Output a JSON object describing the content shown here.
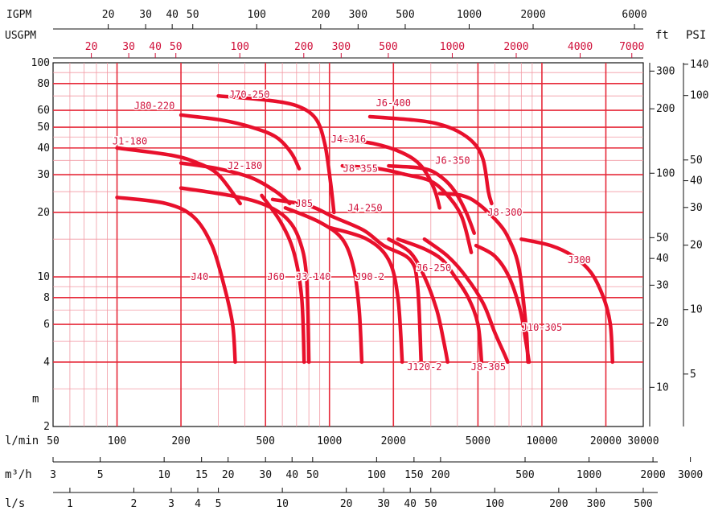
{
  "chart_data": {
    "type": "line",
    "colors": {
      "series": "#e8102c",
      "grid": "#e62a3a",
      "minor_grid": "#f29aa4",
      "axis": "#111111",
      "red_text": "#d0103a"
    },
    "axes": {
      "lmin": {
        "label": "l/min",
        "range": [
          50,
          30000
        ],
        "scale": "log",
        "ticks": [
          [
            50,
            "50"
          ],
          [
            100,
            "100"
          ],
          [
            200,
            "200"
          ],
          [
            500,
            "500"
          ],
          [
            1000,
            "1000"
          ],
          [
            2000,
            "2000"
          ],
          [
            5000,
            "5000"
          ],
          [
            10000,
            "10000"
          ],
          [
            20000,
            "20000"
          ],
          [
            30000,
            "30000"
          ]
        ]
      },
      "m": {
        "label": "m",
        "range": [
          2,
          100
        ],
        "scale": "log",
        "ticks": [
          [
            2,
            "2"
          ],
          [
            4,
            "4"
          ],
          [
            6,
            "6"
          ],
          [
            8,
            "8"
          ],
          [
            10,
            "10"
          ],
          [
            20,
            "20"
          ],
          [
            30,
            "30"
          ],
          [
            40,
            "40"
          ],
          [
            50,
            "50"
          ],
          [
            60,
            "60"
          ],
          [
            80,
            "80"
          ],
          [
            100,
            "100"
          ]
        ]
      },
      "igpm": {
        "label": "IGPM",
        "ticks": [
          [
            20,
            "20"
          ],
          [
            30,
            "30"
          ],
          [
            40,
            "40"
          ],
          [
            50,
            "50"
          ],
          [
            100,
            "100"
          ],
          [
            200,
            "200"
          ],
          [
            300,
            "300"
          ],
          [
            500,
            "500"
          ],
          [
            1000,
            "1000"
          ],
          [
            2000,
            "2000"
          ],
          [
            6000,
            "6000"
          ]
        ]
      },
      "usgpm": {
        "label": "USGPM",
        "ticks": [
          [
            20,
            "20"
          ],
          [
            30,
            "30"
          ],
          [
            40,
            "40"
          ],
          [
            50,
            "50"
          ],
          [
            100,
            "100"
          ],
          [
            200,
            "200"
          ],
          [
            300,
            "300"
          ],
          [
            500,
            "500"
          ],
          [
            1000,
            "1000"
          ],
          [
            2000,
            "2000"
          ],
          [
            4000,
            "4000"
          ],
          [
            7000,
            "7000"
          ]
        ]
      },
      "ft": {
        "label": "ft",
        "ticks": [
          [
            300,
            "300"
          ],
          [
            200,
            "200"
          ],
          [
            100,
            "100"
          ],
          [
            50,
            "50"
          ],
          [
            40,
            "40"
          ],
          [
            30,
            "30"
          ],
          [
            20,
            "20"
          ],
          [
            10,
            "10"
          ]
        ]
      },
      "psi": {
        "label": "PSI",
        "ticks": [
          [
            140,
            "140"
          ],
          [
            100,
            "100"
          ],
          [
            50,
            "50"
          ],
          [
            40,
            "40"
          ],
          [
            30,
            "30"
          ],
          [
            20,
            "20"
          ],
          [
            10,
            "10"
          ],
          [
            5,
            "5"
          ]
        ]
      },
      "m3h": {
        "label": "m³/h",
        "ticks": [
          [
            3,
            "3"
          ],
          [
            5,
            "5"
          ],
          [
            10,
            "10"
          ],
          [
            15,
            "15"
          ],
          [
            20,
            "20"
          ],
          [
            30,
            "30"
          ],
          [
            40,
            "40"
          ],
          [
            50,
            "50"
          ],
          [
            100,
            "100"
          ],
          [
            150,
            "150"
          ],
          [
            200,
            "200"
          ],
          [
            500,
            "500"
          ],
          [
            1000,
            "1000"
          ],
          [
            2000,
            "2000"
          ],
          [
            3000,
            "3000"
          ]
        ]
      },
      "ls": {
        "label": "l/s",
        "ticks": [
          [
            1,
            "1"
          ],
          [
            2,
            "2"
          ],
          [
            3,
            "3"
          ],
          [
            4,
            "4"
          ],
          [
            5,
            "5"
          ],
          [
            10,
            "10"
          ],
          [
            20,
            "20"
          ],
          [
            30,
            "30"
          ],
          [
            40,
            "40"
          ],
          [
            50,
            "50"
          ],
          [
            100,
            "100"
          ],
          [
            200,
            "200"
          ],
          [
            300,
            "300"
          ],
          [
            500,
            "500"
          ]
        ]
      }
    },
    "series": [
      {
        "name": "J1-180",
        "label": {
          "text": "J1-180",
          "at": [
            115,
            43
          ]
        },
        "points": [
          [
            100,
            40
          ],
          [
            180,
            37
          ],
          [
            240,
            34
          ],
          [
            300,
            30
          ],
          [
            380,
            22
          ]
        ]
      },
      {
        "name": "J80-220",
        "label": {
          "text": "J80-220",
          "at": [
            150,
            63
          ]
        },
        "points": [
          [
            200,
            57
          ],
          [
            310,
            54
          ],
          [
            430,
            50
          ],
          [
            560,
            45
          ],
          [
            660,
            38
          ],
          [
            720,
            32
          ]
        ]
      },
      {
        "name": "J70-250",
        "label": {
          "text": "J70-250",
          "at": [
            420,
            71
          ]
        },
        "points": [
          [
            300,
            70
          ],
          [
            500,
            67
          ],
          [
            700,
            63
          ],
          [
            860,
            55
          ],
          [
            950,
            42
          ],
          [
            1010,
            28
          ],
          [
            1050,
            20
          ]
        ]
      },
      {
        "name": "J6-400",
        "label": {
          "text": "J6-400",
          "at": [
            2000,
            65
          ]
        },
        "points": [
          [
            1550,
            56
          ],
          [
            2500,
            54
          ],
          [
            3200,
            52
          ],
          [
            4000,
            48
          ],
          [
            4800,
            42
          ],
          [
            5300,
            35
          ],
          [
            5600,
            25
          ],
          [
            5800,
            22
          ]
        ]
      },
      {
        "name": "J4-316",
        "label": {
          "text": "J4-316",
          "at": [
            1230,
            44
          ]
        },
        "points": [
          [
            1100,
            44
          ],
          [
            1600,
            42
          ],
          [
            2200,
            38
          ],
          [
            2700,
            33
          ],
          [
            3100,
            26
          ],
          [
            3300,
            21
          ]
        ]
      },
      {
        "name": "J2-180",
        "label": {
          "text": "J2-180",
          "at": [
            400,
            33
          ]
        },
        "points": [
          [
            200,
            34
          ],
          [
            300,
            32
          ],
          [
            430,
            29
          ],
          [
            560,
            25
          ],
          [
            650,
            22
          ]
        ]
      },
      {
        "name": "J8-355",
        "label": {
          "text": "J8-355",
          "at": [
            1400,
            32
          ]
        },
        "points": [
          [
            1150,
            33
          ],
          [
            1700,
            32
          ],
          [
            2300,
            30
          ],
          [
            3000,
            28
          ],
          [
            3600,
            24
          ],
          [
            4200,
            19
          ],
          [
            4650,
            13
          ]
        ]
      },
      {
        "name": "J6-350",
        "label": {
          "text": "J6-350",
          "at": [
            3800,
            35
          ]
        },
        "points": [
          [
            1900,
            33
          ],
          [
            2800,
            32
          ],
          [
            3400,
            29
          ],
          [
            3900,
            25
          ],
          [
            4400,
            20
          ],
          [
            4800,
            16
          ]
        ]
      },
      {
        "name": "J85",
        "label": {
          "text": "J85",
          "at": [
            760,
            22
          ]
        },
        "points": [
          [
            200,
            26
          ],
          [
            340,
            24
          ],
          [
            480,
            22
          ],
          [
            620,
            19
          ],
          [
            720,
            15
          ],
          [
            780,
            10
          ],
          [
            800,
            4
          ]
        ]
      },
      {
        "name": "J4-250",
        "label": {
          "text": "J4-250",
          "at": [
            1470,
            21
          ]
        },
        "points": [
          [
            540,
            23
          ],
          [
            800,
            21.5
          ],
          [
            1050,
            19
          ],
          [
            1450,
            16.5
          ],
          [
            1800,
            14
          ],
          [
            2400,
            12
          ],
          [
            2600,
            9
          ],
          [
            2700,
            4
          ]
        ]
      },
      {
        "name": "J8-300",
        "label": {
          "text": "J8-300",
          "at": [
            6700,
            20
          ]
        },
        "points": [
          [
            3300,
            24.5
          ],
          [
            4200,
            24
          ],
          [
            5000,
            22
          ],
          [
            6200,
            18
          ],
          [
            7000,
            15
          ],
          [
            7800,
            11
          ],
          [
            8400,
            6
          ],
          [
            8600,
            4
          ]
        ]
      },
      {
        "name": "J40",
        "label": {
          "text": "J40",
          "at": [
            245,
            10
          ]
        },
        "points": [
          [
            100,
            23.5
          ],
          [
            170,
            22
          ],
          [
            230,
            19
          ],
          [
            280,
            14
          ],
          [
            320,
            9
          ],
          [
            350,
            6
          ],
          [
            360,
            4
          ]
        ]
      },
      {
        "name": "J60",
        "label": {
          "text": "J60",
          "at": [
            560,
            10
          ]
        },
        "points": [
          [
            480,
            24
          ],
          [
            590,
            18
          ],
          [
            680,
            13
          ],
          [
            740,
            8
          ],
          [
            760,
            4
          ]
        ]
      },
      {
        "name": "J3-140",
        "label": {
          "text": "J3-140",
          "at": [
            840,
            10
          ]
        },
        "points": [
          [
            620,
            21
          ],
          [
            900,
            18
          ],
          [
            1150,
            15
          ],
          [
            1300,
            11
          ],
          [
            1380,
            7
          ],
          [
            1420,
            4
          ]
        ]
      },
      {
        "name": "J90-2",
        "label": {
          "text": "J90-2",
          "at": [
            1550,
            10
          ]
        },
        "points": [
          [
            1000,
            17
          ],
          [
            1500,
            15
          ],
          [
            1900,
            12
          ],
          [
            2100,
            8
          ],
          [
            2200,
            4
          ]
        ]
      },
      {
        "name": "J6-250",
        "label": {
          "text": "J6-250",
          "at": [
            3100,
            11
          ]
        },
        "points": [
          [
            2100,
            15
          ],
          [
            2800,
            13.5
          ],
          [
            3400,
            12
          ],
          [
            3900,
            10
          ],
          [
            4500,
            8
          ],
          [
            5000,
            6
          ],
          [
            5200,
            4
          ]
        ]
      },
      {
        "name": "J120-2",
        "label": {
          "text": "J120-2",
          "at": [
            2800,
            3.8
          ]
        },
        "points": [
          [
            1900,
            15
          ],
          [
            2400,
            13
          ],
          [
            2800,
            10
          ],
          [
            3200,
            7
          ],
          [
            3450,
            5
          ],
          [
            3600,
            4
          ]
        ]
      },
      {
        "name": "J8-305",
        "label": {
          "text": "J8-305",
          "at": [
            5600,
            3.8
          ]
        },
        "points": [
          [
            2800,
            15
          ],
          [
            3600,
            12.5
          ],
          [
            4400,
            10
          ],
          [
            5300,
            7.5
          ],
          [
            6000,
            5.5
          ],
          [
            6700,
            4.3
          ],
          [
            6900,
            4
          ]
        ]
      },
      {
        "name": "J10-305",
        "label": {
          "text": "J10-305",
          "at": [
            10000,
            5.8
          ]
        },
        "points": [
          [
            4900,
            14
          ],
          [
            6000,
            12.5
          ],
          [
            7000,
            10
          ],
          [
            7900,
            7
          ],
          [
            8400,
            5
          ],
          [
            8700,
            4
          ]
        ]
      },
      {
        "name": "J300",
        "label": {
          "text": "J300",
          "at": [
            15000,
            12
          ]
        },
        "points": [
          [
            8000,
            15
          ],
          [
            11000,
            14
          ],
          [
            14000,
            12.5
          ],
          [
            17000,
            10.5
          ],
          [
            19500,
            8
          ],
          [
            21000,
            6
          ],
          [
            21500,
            4
          ]
        ]
      }
    ]
  }
}
